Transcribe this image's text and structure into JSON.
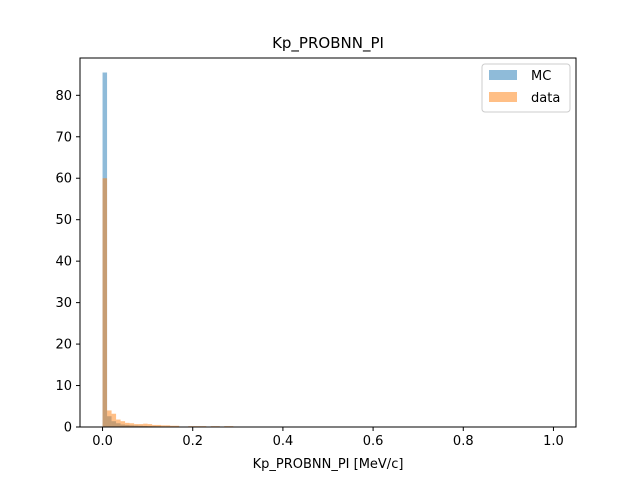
{
  "chart_data": {
    "type": "histogram",
    "title": "Kp_PROBNN_PI",
    "xlabel": "Kp_PROBNN_PI [MeV/c]",
    "ylabel": "",
    "xlim": [
      -0.05,
      1.05
    ],
    "ylim": [
      0,
      89
    ],
    "xticks": [
      "0.0",
      "0.2",
      "0.4",
      "0.6",
      "0.8",
      "1.0"
    ],
    "yticks": [
      "0",
      "10",
      "20",
      "30",
      "40",
      "50",
      "60",
      "70",
      "80"
    ],
    "grid": false,
    "legend_position": "top-right",
    "bin_start": 0.0,
    "bin_width": 0.01,
    "series": [
      {
        "name": "MC",
        "color": "#1f77b4",
        "alpha": 0.5,
        "values": [
          85.5,
          2.6,
          1.4,
          0.9,
          0.6,
          0.5,
          0.4,
          0.35,
          0.3,
          0.25,
          0.2,
          0.18,
          0.15,
          0.12,
          0.1,
          0.1,
          0.1,
          0.08,
          0.08,
          0.07,
          0.07,
          0.06,
          0.06,
          0.05,
          0.05,
          0.05,
          0.05,
          0.05,
          0.05,
          0.04,
          0.04,
          0.04,
          0.04,
          0.04,
          0.04,
          0.04,
          0.03,
          0.03,
          0.03,
          0.03,
          0.03,
          0.03,
          0.03,
          0.03,
          0.03,
          0.03,
          0.03,
          0.03,
          0.03,
          0.03,
          0.03,
          0.03,
          0.03,
          0.03,
          0.03,
          0.03,
          0.03,
          0.03,
          0.03,
          0.03,
          0.03,
          0.03,
          0.03,
          0.03,
          0.03,
          0.03,
          0.03,
          0.03,
          0.03,
          0.03,
          0.03,
          0.03,
          0.03,
          0.03,
          0.03,
          0.03,
          0.03,
          0.03,
          0.03,
          0.03,
          0.03,
          0.03,
          0.03,
          0.03,
          0.03,
          0.03,
          0.03,
          0.03,
          0.03,
          0.03,
          0.03,
          0.03,
          0.03,
          0.03,
          0.03,
          0.03,
          0.03,
          0.03,
          0.03,
          0.05
        ]
      },
      {
        "name": "data",
        "color": "#ff7f0e",
        "alpha": 0.5,
        "values": [
          60.0,
          4.0,
          3.2,
          1.8,
          1.4,
          1.0,
          0.9,
          0.7,
          0.7,
          0.8,
          0.7,
          0.5,
          0.5,
          0.4,
          0.4,
          0.3,
          0.3,
          0.0,
          0.0,
          0.2,
          0.2,
          0.2,
          0.2,
          0.0,
          0.2,
          0.2,
          0.0,
          0.2,
          0.2,
          0.1,
          0.0,
          0.1,
          0.1,
          0.0,
          0.1,
          0.1,
          0.1,
          0.1,
          0.0,
          0.1,
          0.1,
          0.0,
          0.1,
          0.1,
          0.1,
          0.1,
          0.0,
          0.1,
          0.1,
          0.1,
          0.0,
          0.1,
          0.1,
          0.0,
          0.1,
          0.1,
          0.1,
          0.1,
          0.0,
          0.1,
          0.0,
          0.1,
          0.1,
          0.1,
          0.1,
          0.0,
          0.1,
          0.1,
          0.1,
          0.1,
          0.1,
          0.1,
          0.0,
          0.1,
          0.1,
          0.1,
          0.1,
          0.1,
          0.0,
          0.1,
          0.1,
          0.1,
          0.1,
          0.1,
          0.1,
          0.0,
          0.1,
          0.1,
          0.1,
          0.1,
          0.0,
          0.1,
          0.1,
          0.1,
          0.0,
          0.1,
          0.1,
          0.1,
          0.1,
          0.1
        ]
      }
    ]
  }
}
